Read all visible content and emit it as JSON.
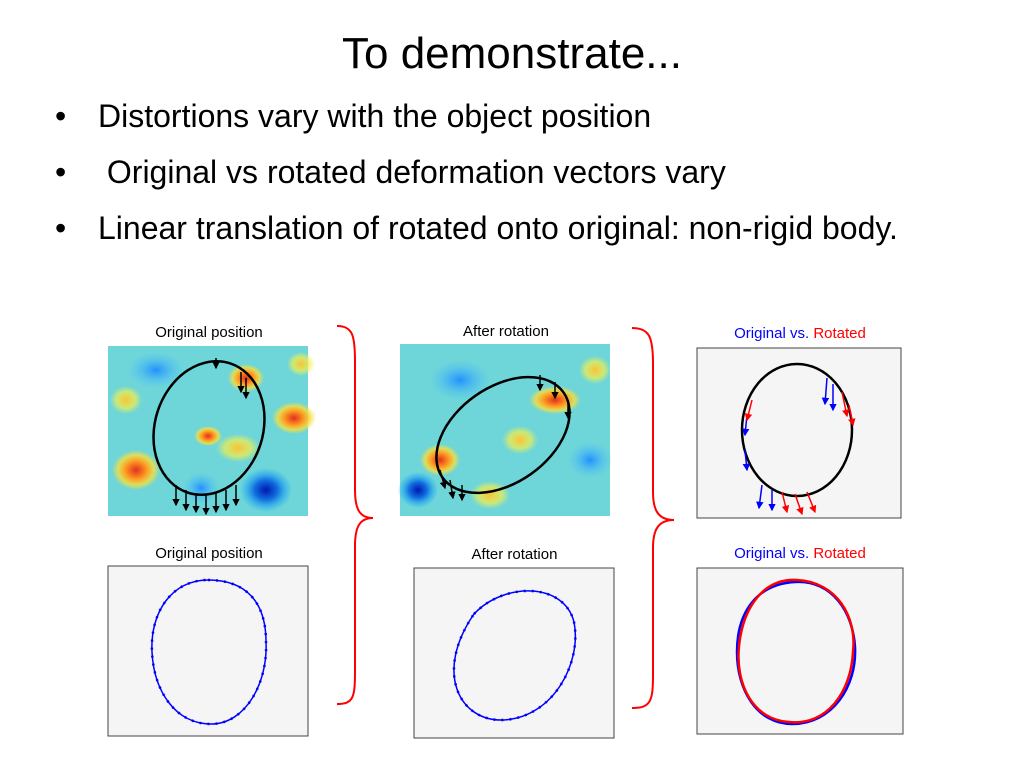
{
  "slide": {
    "title": "To demonstrate...",
    "bullets": [
      "Distortions vary with the object position",
      " Original vs rotated deformation vectors vary",
      "Linear translation of rotated onto original: non-rigid body."
    ]
  },
  "panels": {
    "top_left": {
      "title": "Original position"
    },
    "top_middle": {
      "title": "After rotation"
    },
    "top_right": {
      "title_part1": "Original vs.",
      "title_part2": "Rotated"
    },
    "bottom_left": {
      "title": "Original position"
    },
    "bottom_middle": {
      "title": "After rotation"
    },
    "bottom_right": {
      "title_part1": "Original vs.",
      "title_part2": "Rotated"
    }
  },
  "colors": {
    "bracket": "#ff0000",
    "original_series": "#0000ff",
    "rotated_series": "#ff0000",
    "contour": "#000000"
  }
}
